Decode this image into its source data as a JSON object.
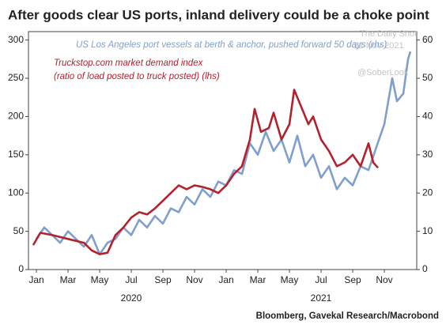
{
  "chart_data": {
    "type": "line",
    "title": "After goods clear US ports, inland delivery could be a choke point",
    "source": "Bloomberg, Gavekal Research/Macrobond",
    "watermarks": [
      "The Daily Shot",
      "12-Nov-2021",
      "@SoberLook"
    ],
    "red_note": "(ratio of load posted to truck posted) (lhs)",
    "xlim": [
      -0.5,
      24.05
    ],
    "xticks": [
      {
        "value": 0,
        "label": "Jan"
      },
      {
        "value": 2,
        "label": "Mar"
      },
      {
        "value": 4,
        "label": "May"
      },
      {
        "value": 6,
        "label": "Jul"
      },
      {
        "value": 8,
        "label": "Sep"
      },
      {
        "value": 10,
        "label": "Nov"
      },
      {
        "value": 12,
        "label": "Jan"
      },
      {
        "value": 14,
        "label": "Mar"
      },
      {
        "value": 16,
        "label": "May"
      },
      {
        "value": 18,
        "label": "Jul"
      },
      {
        "value": 20,
        "label": "Sep"
      },
      {
        "value": 22,
        "label": "Nov"
      }
    ],
    "x_groups": [
      {
        "value": 6,
        "label": "2020"
      },
      {
        "value": 18,
        "label": "2021"
      }
    ],
    "ylim": [
      0,
      311
    ],
    "yticks": [
      0,
      50,
      100,
      150,
      200,
      250,
      300
    ],
    "y2lim": [
      0,
      62.2
    ],
    "y2ticks": [
      0,
      10,
      20,
      30,
      40,
      50,
      60
    ],
    "series": [
      {
        "name": "US Los Angeles port vessels at berth & anchor, pushed forward 50 days (rhs)",
        "color": "#7f9fd0",
        "axis": "y2",
        "x": [
          0,
          0.5,
          1,
          1.5,
          2,
          2.5,
          3,
          3.5,
          4,
          4.5,
          5,
          5.5,
          6,
          6.5,
          7,
          7.5,
          8,
          8.5,
          9,
          9.5,
          10,
          10.5,
          11,
          11.5,
          12,
          12.5,
          13,
          13.5,
          14,
          14.5,
          15,
          15.5,
          16,
          16.5,
          17,
          17.5,
          18,
          18.5,
          19,
          19.5,
          20,
          20.5,
          21,
          21.5,
          22,
          22.5,
          22.8,
          23.2,
          23.5,
          23.65
        ],
        "values": [
          8,
          11,
          9,
          7,
          10,
          8,
          6,
          9,
          4,
          7,
          8,
          11,
          9,
          13,
          11,
          14,
          12,
          16,
          15,
          19,
          17,
          21,
          19,
          23,
          22,
          26,
          25,
          33,
          30,
          36,
          31,
          34,
          28,
          35,
          27,
          30,
          24,
          27,
          21,
          24,
          22,
          27,
          26,
          32,
          38,
          50,
          44,
          46,
          55,
          57
        ]
      },
      {
        "name": "Truckstop.com market demand index",
        "color": "#b3212d",
        "x": [
          -0.2,
          0.25,
          1,
          2,
          3,
          3.5,
          4,
          4.5,
          5,
          5.5,
          6,
          6.5,
          7,
          7.5,
          8,
          8.5,
          9,
          9.5,
          10,
          10.5,
          11,
          11.5,
          12,
          12.5,
          13,
          13.5,
          13.8,
          14.2,
          14.7,
          15,
          15.5,
          16,
          16.3,
          16.8,
          17.2,
          17.5,
          18,
          18.5,
          19,
          19.5,
          20,
          20.5,
          21,
          21.3,
          21.6
        ],
        "values": [
          32,
          48,
          45,
          40,
          35,
          25,
          20,
          22,
          45,
          55,
          68,
          75,
          72,
          80,
          90,
          100,
          110,
          105,
          110,
          108,
          105,
          100,
          110,
          125,
          135,
          170,
          210,
          180,
          185,
          205,
          170,
          190,
          235,
          210,
          190,
          200,
          170,
          155,
          135,
          140,
          150,
          135,
          165,
          140,
          133
        ]
      }
    ]
  }
}
